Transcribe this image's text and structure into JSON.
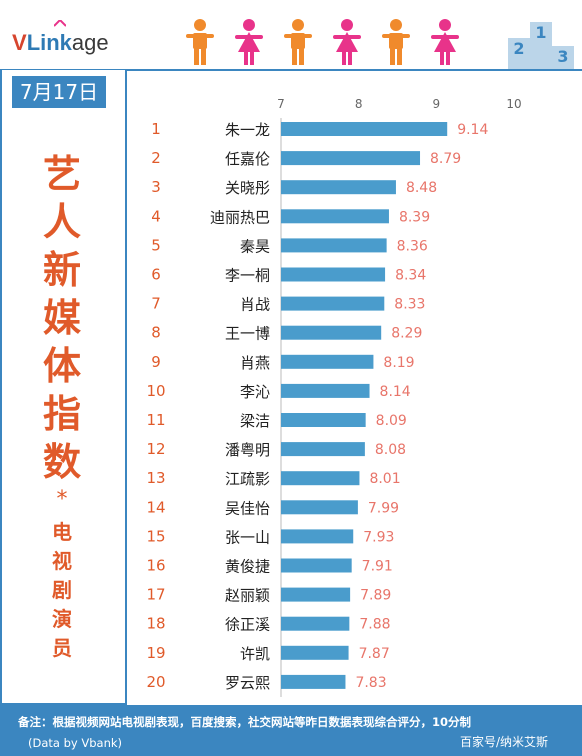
{
  "brand": {
    "logo_v": "V",
    "logo_link": "Link",
    "logo_age": "age",
    "podium_numbers": [
      "2",
      "1",
      "3"
    ]
  },
  "date": "7月17日",
  "title_chars": [
    "艺",
    "人",
    "新",
    "媒",
    "体",
    "指",
    "数"
  ],
  "title_star": "*",
  "subtitle_chars": [
    "电",
    "视",
    "剧",
    "演",
    "员"
  ],
  "footer": {
    "note": "备注：根据视频网站电视剧表现，百度搜索，社交网站等昨日数据表现综合评分，10分制",
    "credit": "(Data by Vbank)",
    "source": "百家号/纳米艾斯"
  },
  "colors": {
    "accent": "#3b86c0",
    "title": "#e05a2a",
    "bar": "#4a9ccc",
    "value_label": "#e8756a",
    "rank": "#e05a2a",
    "male_figure": "#f08a2c",
    "female_figure": "#e8338a"
  },
  "chart_data": {
    "type": "bar",
    "orientation": "horizontal",
    "xlim": [
      7,
      10
    ],
    "xticks": [
      "7",
      "8",
      "9",
      "10"
    ],
    "categories": [
      "朱一龙",
      "任嘉伦",
      "关晓彤",
      "迪丽热巴",
      "秦昊",
      "李一桐",
      "肖战",
      "王一博",
      "肖燕",
      "李沁",
      "梁洁",
      "潘粤明",
      "江疏影",
      "吴佳怡",
      "张一山",
      "黄俊捷",
      "赵丽颖",
      "徐正溪",
      "许凯",
      "罗云熙"
    ],
    "ranks": [
      "1",
      "2",
      "3",
      "4",
      "5",
      "6",
      "7",
      "8",
      "9",
      "10",
      "11",
      "12",
      "13",
      "14",
      "15",
      "16",
      "17",
      "18",
      "19",
      "20"
    ],
    "values": [
      9.14,
      8.79,
      8.48,
      8.39,
      8.36,
      8.34,
      8.33,
      8.29,
      8.19,
      8.14,
      8.09,
      8.08,
      8.01,
      7.99,
      7.93,
      7.91,
      7.89,
      7.88,
      7.87,
      7.83
    ],
    "value_labels": [
      "9.14",
      "8.79",
      "8.48",
      "8.39",
      "8.36",
      "8.34",
      "8.33",
      "8.29",
      "8.19",
      "8.14",
      "8.09",
      "8.08",
      "8.01",
      "7.99",
      "7.93",
      "7.91",
      "7.89",
      "7.88",
      "7.87",
      "7.83"
    ]
  }
}
